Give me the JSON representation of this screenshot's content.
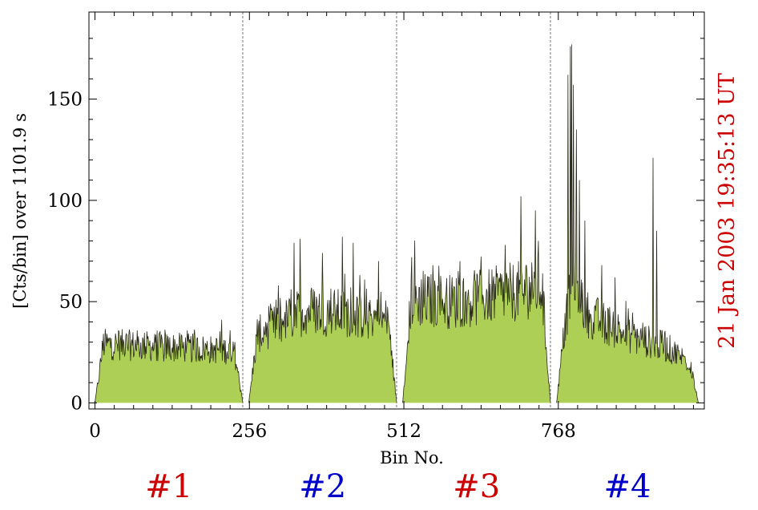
{
  "chart_data": {
    "type": "area",
    "xlabel": "Bin No.",
    "ylabel": "[Cts/bin] over  1101.9 s",
    "right_label": "21 Jan  2003   19:35:13   UT",
    "right_label_color": "#cc0000",
    "fill_color": "#aecf55",
    "line_color": "#2a2a1a",
    "xlim": [
      -10,
      1010
    ],
    "ylim": [
      -3,
      193
    ],
    "x_ticks": [
      0,
      256,
      512,
      768
    ],
    "x_tick_labels": [
      "0",
      "256",
      "512",
      "768"
    ],
    "y_ticks": [
      0,
      50,
      100,
      150
    ],
    "y_tick_labels": [
      "0",
      "50",
      "100",
      "150"
    ],
    "separators": [
      245,
      500,
      755
    ],
    "segments": [
      {
        "label": "#1",
        "color": "#cc0000",
        "x_start": 0,
        "x_end": 245,
        "plateau": [
          {
            "x": 18,
            "y": 29
          },
          {
            "x": 225,
            "y": 26
          }
        ]
      },
      {
        "label": "#2",
        "color": "#0000cc",
        "x_start": 255,
        "x_end": 500,
        "plateau": [
          {
            "x": 272,
            "y": 34
          },
          {
            "x": 350,
            "y": 46
          },
          {
            "x": 420,
            "y": 44
          },
          {
            "x": 480,
            "y": 41
          }
        ]
      },
      {
        "label": "#3",
        "color": "#cc0000",
        "x_start": 510,
        "x_end": 755,
        "plateau": [
          {
            "x": 525,
            "y": 51
          },
          {
            "x": 600,
            "y": 50
          },
          {
            "x": 680,
            "y": 54
          },
          {
            "x": 735,
            "y": 57
          }
        ]
      },
      {
        "label": "#4",
        "color": "#0000cc",
        "x_start": 765,
        "x_end": 1000,
        "plateau": [
          {
            "x": 778,
            "y": 38
          },
          {
            "x": 795,
            "y": 65
          },
          {
            "x": 815,
            "y": 44
          },
          {
            "x": 880,
            "y": 34
          },
          {
            "x": 950,
            "y": 27
          },
          {
            "x": 985,
            "y": 20
          }
        ]
      }
    ],
    "peaks": [
      {
        "x": 304,
        "y": 58
      },
      {
        "x": 330,
        "y": 79
      },
      {
        "x": 340,
        "y": 81
      },
      {
        "x": 377,
        "y": 74
      },
      {
        "x": 410,
        "y": 82
      },
      {
        "x": 428,
        "y": 79
      },
      {
        "x": 470,
        "y": 70
      },
      {
        "x": 525,
        "y": 72
      },
      {
        "x": 560,
        "y": 68
      },
      {
        "x": 605,
        "y": 70
      },
      {
        "x": 680,
        "y": 78
      },
      {
        "x": 706,
        "y": 102
      },
      {
        "x": 730,
        "y": 95
      },
      {
        "x": 735,
        "y": 80
      },
      {
        "x": 784,
        "y": 162
      },
      {
        "x": 788,
        "y": 176
      },
      {
        "x": 790,
        "y": 177
      },
      {
        "x": 793,
        "y": 157
      },
      {
        "x": 798,
        "y": 135
      },
      {
        "x": 803,
        "y": 110
      },
      {
        "x": 812,
        "y": 90
      },
      {
        "x": 840,
        "y": 68
      },
      {
        "x": 862,
        "y": 62
      },
      {
        "x": 925,
        "y": 121
      },
      {
        "x": 931,
        "y": 85
      }
    ]
  }
}
